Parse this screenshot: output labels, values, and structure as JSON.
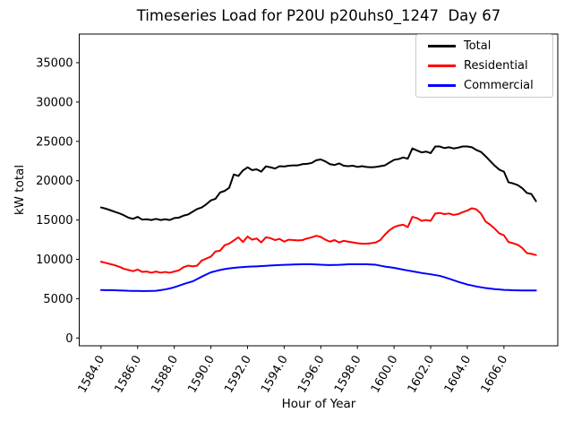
{
  "chart_data": {
    "type": "line",
    "title": "Timeseries Load for P20U p20uhs0_1247  Day 67",
    "xlabel": "Hour of Year",
    "ylabel": "kW total",
    "grid": false,
    "legend_location": "upper right",
    "xlim": [
      1582.81,
      1608.94
    ],
    "ylim": [
      -990,
      38645
    ],
    "x_ticks": [
      1584.0,
      1586.0,
      1588.0,
      1590.0,
      1592.0,
      1594.0,
      1596.0,
      1598.0,
      1600.0,
      1602.0,
      1604.0,
      1606.0
    ],
    "x_tick_labels": [
      "1584.0",
      "1586.0",
      "1588.0",
      "1590.0",
      "1592.0",
      "1594.0",
      "1596.0",
      "1598.0",
      "1600.0",
      "1602.0",
      "1604.0",
      "1606.0"
    ],
    "y_ticks": [
      0,
      5000,
      10000,
      15000,
      20000,
      25000,
      30000,
      35000
    ],
    "y_tick_labels": [
      "0",
      "5000",
      "10000",
      "15000",
      "20000",
      "25000",
      "30000",
      "35000"
    ],
    "x": [
      1584.0,
      1584.25,
      1584.5,
      1584.75,
      1585.0,
      1585.25,
      1585.5,
      1585.75,
      1586.0,
      1586.25,
      1586.5,
      1586.75,
      1587.0,
      1587.25,
      1587.5,
      1587.75,
      1588.0,
      1588.25,
      1588.5,
      1588.75,
      1589.0,
      1589.25,
      1589.5,
      1589.75,
      1590.0,
      1590.25,
      1590.5,
      1590.75,
      1591.0,
      1591.25,
      1591.5,
      1591.75,
      1592.0,
      1592.25,
      1592.5,
      1592.75,
      1593.0,
      1593.25,
      1593.5,
      1593.75,
      1594.0,
      1594.25,
      1594.5,
      1594.75,
      1595.0,
      1595.25,
      1595.5,
      1595.75,
      1596.0,
      1596.25,
      1596.5,
      1596.75,
      1597.0,
      1597.25,
      1597.5,
      1597.75,
      1598.0,
      1598.25,
      1598.5,
      1598.75,
      1599.0,
      1599.25,
      1599.5,
      1599.75,
      1600.0,
      1600.25,
      1600.5,
      1600.75,
      1601.0,
      1601.25,
      1601.5,
      1601.75,
      1602.0,
      1602.25,
      1602.5,
      1602.75,
      1603.0,
      1603.25,
      1603.5,
      1603.75,
      1604.0,
      1604.25,
      1604.5,
      1604.75,
      1605.0,
      1605.25,
      1605.5,
      1605.75,
      1606.0,
      1606.25,
      1606.5,
      1606.75,
      1607.0,
      1607.25,
      1607.5,
      1607.75
    ],
    "series": [
      {
        "name": "Total",
        "color": "#000000",
        "values": [
          16600,
          16450,
          16250,
          16050,
          15850,
          15600,
          15300,
          15150,
          15400,
          15050,
          15100,
          15000,
          15150,
          15000,
          15100,
          15000,
          15250,
          15300,
          15550,
          15700,
          16050,
          16400,
          16600,
          17000,
          17500,
          17700,
          18500,
          18700,
          19100,
          20800,
          20600,
          21300,
          21700,
          21350,
          21450,
          21150,
          21825,
          21700,
          21550,
          21850,
          21800,
          21900,
          21950,
          21950,
          22100,
          22150,
          22250,
          22600,
          22700,
          22450,
          22100,
          22000,
          22200,
          21900,
          21850,
          21900,
          21750,
          21850,
          21750,
          21700,
          21750,
          21850,
          21950,
          22300,
          22650,
          22750,
          22950,
          22800,
          24100,
          23850,
          23600,
          23700,
          23500,
          24350,
          24350,
          24150,
          24250,
          24100,
          24200,
          24350,
          24350,
          24250,
          23900,
          23650,
          23100,
          22500,
          21900,
          21400,
          21150,
          19800,
          19650,
          19450,
          19050,
          18450,
          18300,
          17400
        ]
      },
      {
        "name": "Residential",
        "color": "#ff0000",
        "values": [
          9700,
          9550,
          9400,
          9250,
          9050,
          8800,
          8650,
          8500,
          8700,
          8400,
          8450,
          8300,
          8450,
          8300,
          8400,
          8300,
          8450,
          8600,
          9000,
          9200,
          9100,
          9200,
          9850,
          10100,
          10350,
          11000,
          11100,
          11800,
          12000,
          12400,
          12800,
          12200,
          12900,
          12500,
          12650,
          12150,
          12800,
          12700,
          12450,
          12600,
          12250,
          12500,
          12450,
          12400,
          12450,
          12650,
          12800,
          13000,
          12850,
          12500,
          12250,
          12450,
          12150,
          12350,
          12250,
          12150,
          12050,
          12000,
          12000,
          12050,
          12150,
          12450,
          13150,
          13700,
          14100,
          14300,
          14400,
          14100,
          15400,
          15250,
          14900,
          15000,
          14900,
          15830,
          15900,
          15750,
          15830,
          15650,
          15750,
          16000,
          16200,
          16500,
          16350,
          15800,
          14800,
          14400,
          13900,
          13300,
          13050,
          12200,
          12050,
          11850,
          11450,
          10800,
          10700,
          10550
        ]
      },
      {
        "name": "Commercial",
        "color": "#0000ff",
        "values": [
          6100,
          6090,
          6080,
          6065,
          6050,
          6025,
          6000,
          5990,
          5980,
          5975,
          5970,
          5985,
          6000,
          6080,
          6180,
          6300,
          6450,
          6650,
          6850,
          7030,
          7200,
          7500,
          7800,
          8080,
          8350,
          8500,
          8650,
          8760,
          8850,
          8920,
          8980,
          9020,
          9060,
          9085,
          9110,
          9145,
          9180,
          9215,
          9250,
          9275,
          9300,
          9320,
          9340,
          9355,
          9370,
          9375,
          9380,
          9345,
          9310,
          9290,
          9270,
          9285,
          9300,
          9335,
          9370,
          9375,
          9380,
          9380,
          9380,
          9345,
          9310,
          9195,
          9080,
          9000,
          8920,
          8805,
          8690,
          8585,
          8480,
          8375,
          8270,
          8185,
          8100,
          8000,
          7900,
          7725,
          7550,
          7350,
          7150,
          6975,
          6800,
          6675,
          6550,
          6450,
          6350,
          6285,
          6220,
          6170,
          6120,
          6095,
          6070,
          6060,
          6050,
          6040,
          6040,
          6040
        ]
      }
    ]
  }
}
